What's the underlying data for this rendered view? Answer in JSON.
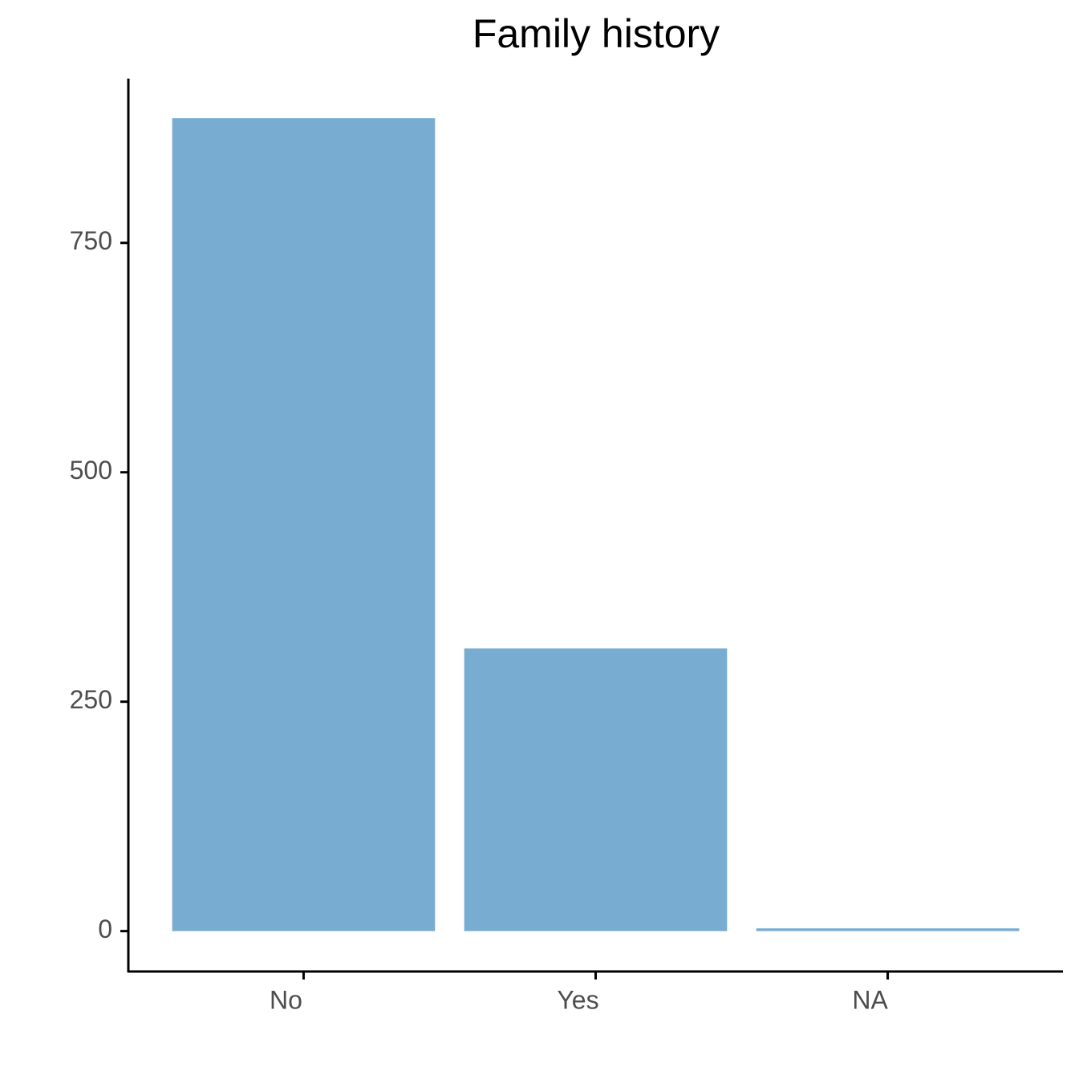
{
  "chart_data": {
    "type": "bar",
    "title": "Family history",
    "categories": [
      "No",
      "Yes",
      "NA"
    ],
    "values": [
      886,
      308,
      3
    ],
    "color": "#78acd1",
    "ylim": [
      -44,
      929
    ],
    "yticks": [
      0,
      250,
      500,
      750
    ],
    "grid": false
  }
}
